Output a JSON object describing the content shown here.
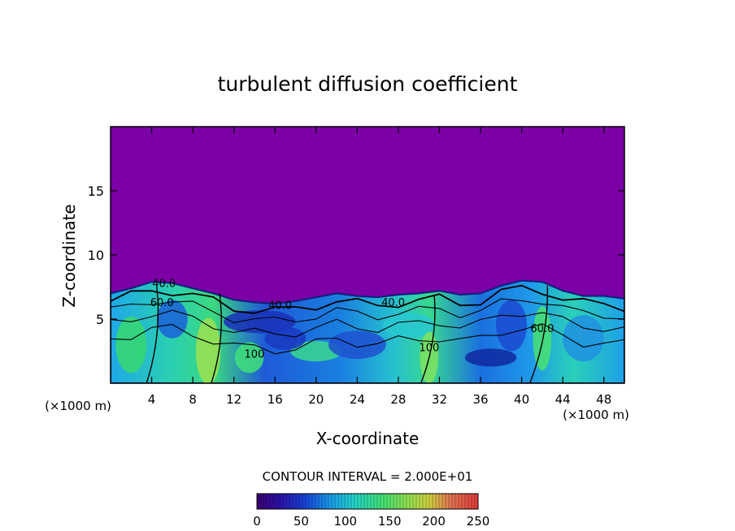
{
  "chart_data": {
    "type": "heatmap",
    "title": "turbulent diffusion coefficient",
    "xlabel": "X-coordinate",
    "ylabel": "Z-coordinate",
    "x_unit_left": "(×1000 m)",
    "x_unit_right": "(×1000 m)",
    "xlim": [
      0,
      50
    ],
    "ylim": [
      0,
      20
    ],
    "x_ticks": [
      4,
      8,
      12,
      16,
      20,
      24,
      28,
      32,
      36,
      40,
      44,
      48
    ],
    "x_tick_labels": [
      "4",
      "8",
      "12",
      "16",
      "20",
      "24",
      "28",
      "32",
      "36",
      "40",
      "44",
      "48"
    ],
    "y_ticks": [
      5,
      10,
      15
    ],
    "y_tick_labels": [
      "5",
      "10",
      "15"
    ],
    "contour_interval_text": "CONTOUR INTERVAL = 2.000E+01",
    "contour_labels": [
      {
        "text": "40.0",
        "x": 5.2,
        "z": 7.5
      },
      {
        "text": "60.0",
        "x": 5.0,
        "z": 6.0
      },
      {
        "text": "40.0",
        "x": 16.5,
        "z": 5.8
      },
      {
        "text": "40.0",
        "x": 27.5,
        "z": 6.0
      },
      {
        "text": "60.0",
        "x": 42.0,
        "z": 4.0
      },
      {
        "text": "100",
        "x": 14.0,
        "z": 2.0
      },
      {
        "text": "100",
        "x": 31.0,
        "z": 2.5
      }
    ],
    "colorbar": {
      "min": 0,
      "max": 250,
      "ticks": [
        0,
        50,
        100,
        150,
        200,
        250
      ],
      "tick_labels": [
        "0",
        "50",
        "100",
        "150",
        "200",
        "250"
      ]
    },
    "boundary_layer_top_z": [
      [
        0,
        7.0
      ],
      [
        2,
        7.4
      ],
      [
        4,
        7.9
      ],
      [
        6,
        7.8
      ],
      [
        8,
        7.4
      ],
      [
        10,
        7.0
      ],
      [
        12,
        6.5
      ],
      [
        14,
        6.3
      ],
      [
        16,
        6.2
      ],
      [
        18,
        6.4
      ],
      [
        20,
        6.7
      ],
      [
        22,
        7.0
      ],
      [
        24,
        6.8
      ],
      [
        26,
        6.7
      ],
      [
        28,
        6.9
      ],
      [
        30,
        7.0
      ],
      [
        32,
        7.2
      ],
      [
        34,
        6.9
      ],
      [
        36,
        7.0
      ],
      [
        38,
        7.6
      ],
      [
        40,
        8.0
      ],
      [
        42,
        7.9
      ],
      [
        44,
        7.2
      ],
      [
        46,
        6.8
      ],
      [
        48,
        6.8
      ],
      [
        50,
        6.6
      ]
    ],
    "grid": false
  }
}
